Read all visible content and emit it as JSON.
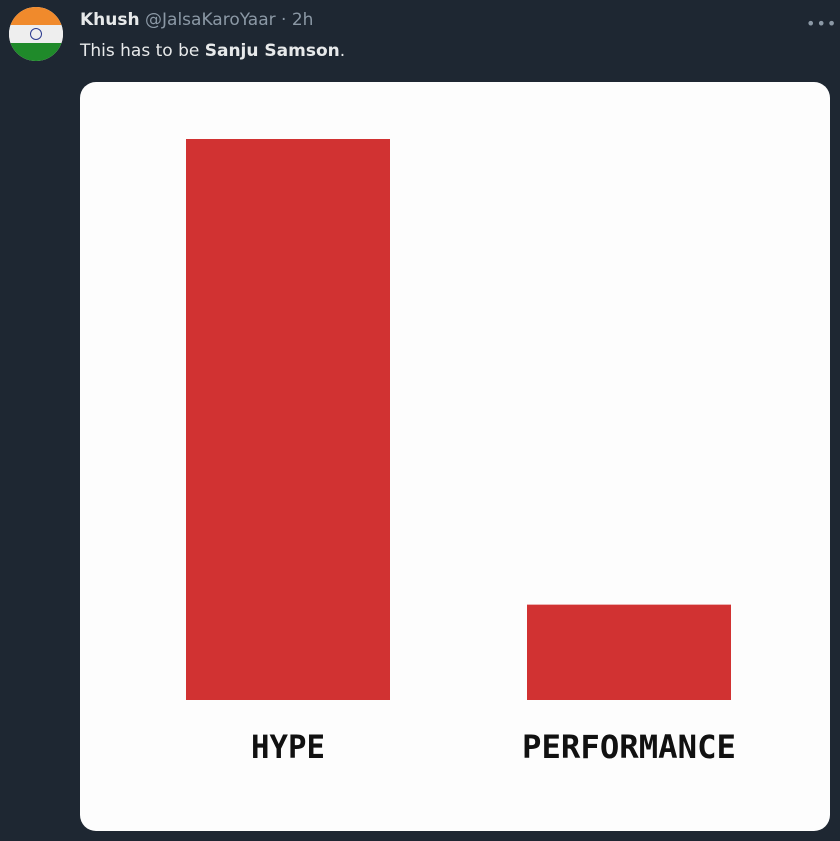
{
  "tweet": {
    "author_name": "Khush",
    "handle": "@JalsaKaroYaar",
    "separator": "·",
    "time": "2h",
    "text_prefix": "This has to be ",
    "text_bold": "Sanju Samson",
    "text_suffix": ".",
    "more_icon": "ellipsis-icon",
    "avatar": "india-flag-avatar"
  },
  "chart_data": {
    "type": "bar",
    "categories": [
      "HYPE",
      "PERFORMANCE"
    ],
    "values": [
      100,
      17
    ],
    "bar_color": "#d13232",
    "xlabel": "",
    "ylabel": "",
    "ylim": [
      0,
      100
    ],
    "grid": false
  },
  "colors": {
    "background": "#1e2732",
    "bar": "#d13232"
  }
}
